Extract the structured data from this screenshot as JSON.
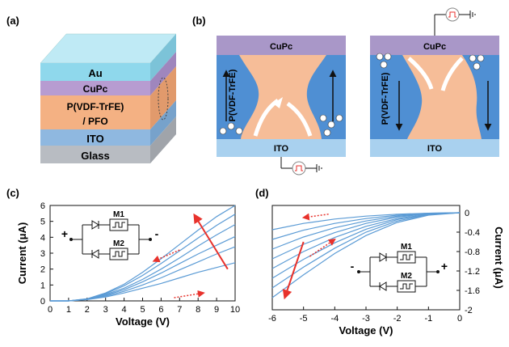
{
  "panels": {
    "a": {
      "label": "(a)",
      "layers": [
        "Au",
        "CuPc",
        "P(VDF-TrFE)\n/ PFO",
        "ITO",
        "Glass"
      ],
      "colors": {
        "au": "#8fd8ec",
        "cupc": "#b79cd1",
        "blend": "#f4b183",
        "ito": "#8fb8e0",
        "glass": "#b8bcc2"
      }
    },
    "b": {
      "label": "(b)",
      "left": {
        "top_layer": "CuPc",
        "bottom_layer": "ITO",
        "matrix": "P(VDF-TrFE)"
      },
      "right": {
        "top_layer": "CuPc",
        "bottom_layer": "ITO",
        "matrix": "P(VDF-TrFE)"
      },
      "colors": {
        "cupc": "#a997c8",
        "ferro": "#4f8fd3",
        "pfo": "#f6bd98",
        "ito": "#a9d1ef"
      }
    },
    "c": {
      "label": "(c)",
      "circuit": {
        "m1": "M1",
        "m2": "M2",
        "plus": "+",
        "minus": "-"
      }
    },
    "d": {
      "label": "(d)",
      "circuit": {
        "m1": "M1",
        "m2": "M2",
        "plus": "+",
        "minus": "-"
      }
    }
  },
  "chart_data": [
    {
      "type": "line",
      "panel": "c",
      "xlabel": "Voltage (V)",
      "ylabel": "Current (μA)",
      "xlim": [
        0,
        10
      ],
      "ylim": [
        0,
        6
      ],
      "xticks": [
        0,
        1,
        2,
        3,
        4,
        5,
        6,
        7,
        8,
        9,
        10
      ],
      "yticks": [
        0,
        1,
        2,
        3,
        4,
        5,
        6
      ],
      "xtick_labels": [
        "0",
        "1",
        "2",
        "3",
        "4",
        "5",
        "6",
        "7",
        "8",
        "9",
        "10"
      ],
      "ytick_labels": [
        "0",
        "1",
        "2",
        "3",
        "4",
        "5",
        "6"
      ],
      "series_color": "#5b9bd5",
      "series": [
        {
          "x": [
            0,
            1,
            2,
            3,
            4,
            5,
            6,
            7,
            8,
            9,
            10
          ],
          "y": [
            0,
            0,
            0.08,
            0.25,
            0.5,
            0.8,
            1.1,
            1.45,
            1.8,
            2.1,
            2.4
          ]
        },
        {
          "x": [
            0,
            1,
            2,
            3,
            4,
            5,
            6,
            7,
            8,
            9,
            10
          ],
          "y": [
            0,
            0,
            0.09,
            0.3,
            0.6,
            1.0,
            1.45,
            1.95,
            2.45,
            2.95,
            3.4
          ]
        },
        {
          "x": [
            0,
            1,
            2,
            3,
            4,
            5,
            6,
            7,
            8,
            9,
            10
          ],
          "y": [
            0,
            0,
            0.1,
            0.35,
            0.7,
            1.2,
            1.75,
            2.35,
            2.95,
            3.5,
            4.05
          ]
        },
        {
          "x": [
            0,
            1,
            2,
            3,
            4,
            5,
            6,
            7,
            8,
            9,
            10
          ],
          "y": [
            0,
            0,
            0.11,
            0.4,
            0.8,
            1.35,
            2.0,
            2.7,
            3.45,
            4.15,
            4.8
          ]
        },
        {
          "x": [
            0,
            1,
            2,
            3,
            4,
            5,
            6,
            7,
            8,
            9,
            10
          ],
          "y": [
            0,
            0,
            0.12,
            0.45,
            0.95,
            1.6,
            2.35,
            3.15,
            3.95,
            4.75,
            5.45
          ]
        },
        {
          "x": [
            0,
            1,
            2,
            3,
            4,
            5,
            6,
            7,
            8,
            9,
            10
          ],
          "y": [
            0,
            0,
            0.13,
            0.5,
            1.05,
            1.8,
            2.65,
            3.55,
            4.45,
            5.3,
            6.0
          ]
        }
      ],
      "arrow_color": "#e8322c"
    },
    {
      "type": "line",
      "panel": "d",
      "xlabel": "Voltage (V)",
      "ylabel": "Current (μA)",
      "xlim": [
        -6,
        0
      ],
      "ylim": [
        -2,
        0.15
      ],
      "xticks": [
        -6,
        -5,
        -4,
        -3,
        -2,
        -1,
        0
      ],
      "yticks": [
        0,
        -0.4,
        -0.8,
        -1.2,
        -1.6,
        -2
      ],
      "xtick_labels": [
        "-6",
        "-5",
        "-4",
        "-3",
        "-2",
        "-1",
        "0"
      ],
      "ytick_labels": [
        "0",
        "-0.4",
        "-0.8",
        "-1.2",
        "-1.6",
        "-2"
      ],
      "series_color": "#5b9bd5",
      "series": [
        {
          "x": [
            -6,
            -5,
            -4,
            -3,
            -2,
            -1,
            0
          ],
          "y": [
            -0.35,
            -0.22,
            -0.13,
            -0.07,
            -0.03,
            -0.01,
            0
          ]
        },
        {
          "x": [
            -6,
            -5,
            -4,
            -3,
            -2,
            -1,
            0
          ],
          "y": [
            -0.55,
            -0.36,
            -0.22,
            -0.12,
            -0.05,
            -0.01,
            0
          ]
        },
        {
          "x": [
            -6,
            -5,
            -4,
            -3,
            -2,
            -1,
            0
          ],
          "y": [
            -0.75,
            -0.5,
            -0.31,
            -0.17,
            -0.07,
            -0.02,
            0
          ]
        },
        {
          "x": [
            -6,
            -5,
            -4,
            -3,
            -2,
            -1,
            0
          ],
          "y": [
            -0.95,
            -0.65,
            -0.41,
            -0.22,
            -0.09,
            -0.02,
            0
          ]
        },
        {
          "x": [
            -6,
            -5,
            -4,
            -3,
            -2,
            -1,
            0
          ],
          "y": [
            -1.15,
            -0.8,
            -0.51,
            -0.28,
            -0.12,
            -0.03,
            0
          ]
        },
        {
          "x": [
            -6,
            -5,
            -4,
            -3,
            -2,
            -1,
            0
          ],
          "y": [
            -1.35,
            -0.96,
            -0.62,
            -0.34,
            -0.14,
            -0.03,
            0
          ]
        },
        {
          "x": [
            -6,
            -5,
            -4,
            -3,
            -2,
            -1,
            0
          ],
          "y": [
            -1.55,
            -1.12,
            -0.73,
            -0.4,
            -0.17,
            -0.04,
            0
          ]
        },
        {
          "x": [
            -6,
            -5,
            -4,
            -3,
            -2,
            -1,
            0
          ],
          "y": [
            -1.75,
            -1.28,
            -0.84,
            -0.47,
            -0.2,
            -0.05,
            0
          ]
        }
      ],
      "arrow_color": "#e8322c"
    }
  ]
}
